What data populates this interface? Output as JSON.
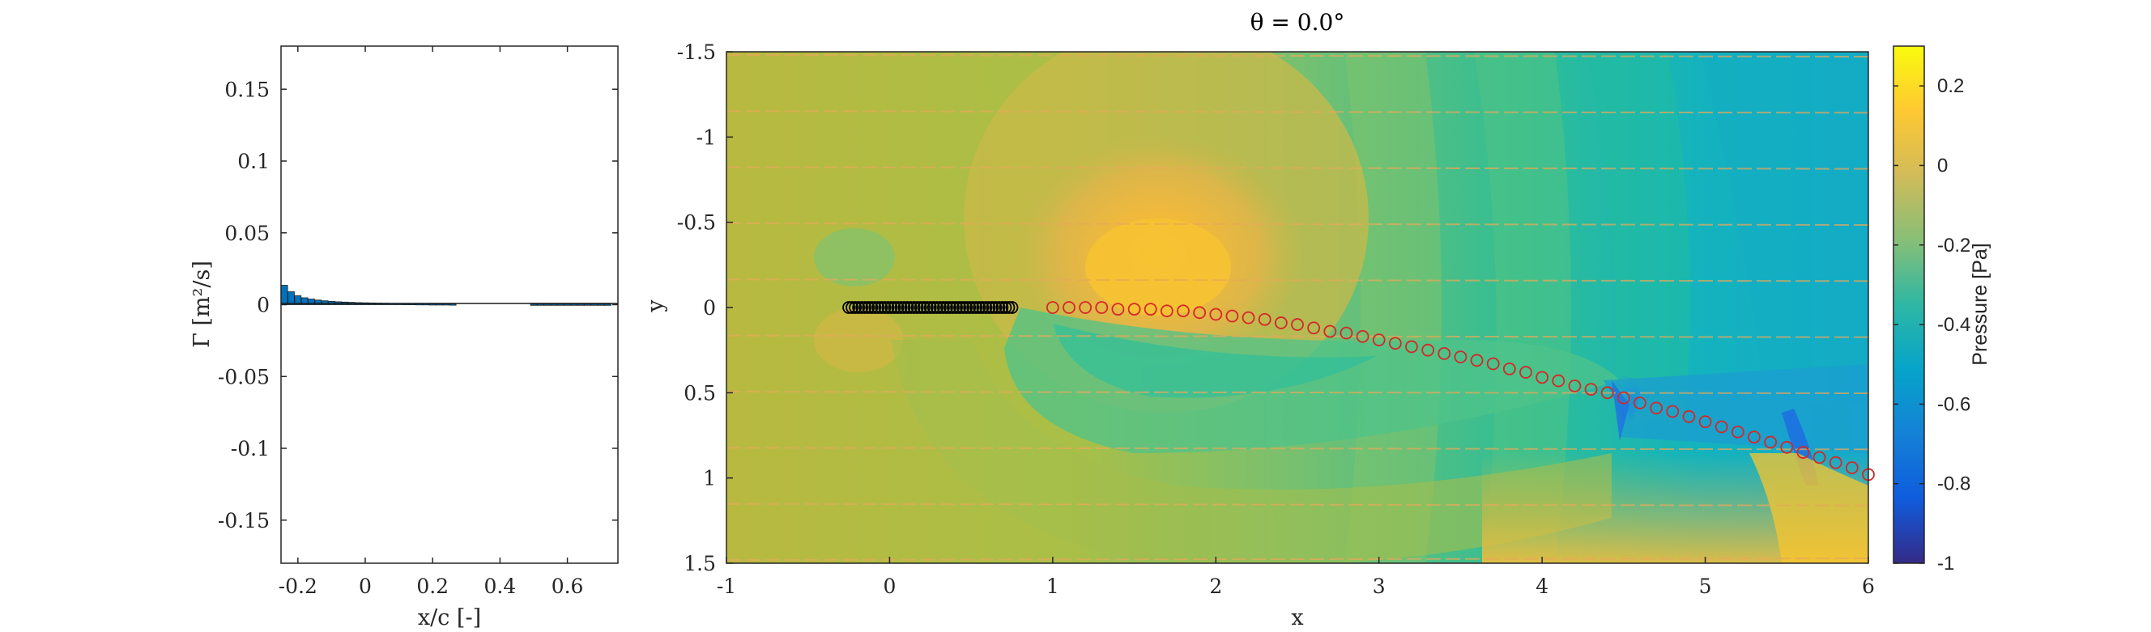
{
  "chart_data": [
    {
      "type": "bar",
      "xlabel": "x/c [-]",
      "ylabel": "Γ [m²/s]",
      "xlim": [
        -0.25,
        0.75
      ],
      "ylim": [
        -0.18,
        0.18
      ],
      "x_ticks": [
        "-0.2",
        "0",
        "0.2",
        "0.4",
        "0.6"
      ],
      "y_ticks": [
        "0.15",
        "0.1",
        "0.05",
        "0",
        "-0.05",
        "-0.1",
        "-0.15"
      ],
      "bar_color": "#0072bd",
      "x": [
        -0.24,
        -0.22,
        -0.2,
        -0.18,
        -0.16,
        -0.14,
        -0.12,
        -0.1,
        -0.08,
        -0.06,
        -0.04,
        -0.02,
        0.0,
        0.02,
        0.04,
        0.06,
        0.08,
        0.1,
        0.12,
        0.14,
        0.16,
        0.18,
        0.2,
        0.22,
        0.24,
        0.26,
        0.5,
        0.52,
        0.54,
        0.56,
        0.58,
        0.6,
        0.62,
        0.64,
        0.66,
        0.68,
        0.7,
        0.72
      ],
      "values": [
        0.0135,
        0.009,
        0.0062,
        0.0048,
        0.0039,
        0.0032,
        0.0027,
        0.0023,
        0.002,
        0.0018,
        0.0016,
        0.0014,
        0.0013,
        0.0012,
        0.0011,
        0.001,
        0.0009,
        0.0009,
        0.0008,
        0.0008,
        0.0007,
        0.0007,
        0.0006,
        0.0006,
        0.0006,
        0.0005,
        0.0004,
        0.0004,
        0.0004,
        0.0004,
        0.0004,
        0.0004,
        0.0004,
        0.0004,
        0.0004,
        0.0004,
        0.0004,
        0.0004
      ]
    },
    {
      "type": "heatmap",
      "title": "θ = 0.0°",
      "xlabel": "x",
      "ylabel": "y",
      "xlim": [
        -1,
        6
      ],
      "ylim": [
        -1.5,
        1.5
      ],
      "y_reversed": true,
      "x_ticks": [
        "-1",
        "0",
        "1",
        "2",
        "3",
        "4",
        "5",
        "6"
      ],
      "y_ticks": [
        "-1.5",
        "-1",
        "-0.5",
        "0",
        "0.5",
        "1",
        "1.5"
      ],
      "colorbar": {
        "label": "Pressure [Pa]",
        "range": [
          -1,
          0.3
        ],
        "ticks": [
          "0.2",
          "0",
          "-0.2",
          "-0.4",
          "-0.6",
          "-0.8",
          "-1"
        ],
        "colormap": "parula"
      },
      "plate_points": {
        "color": "#000000",
        "x": [
          -0.25,
          -0.23,
          -0.21,
          -0.19,
          -0.17,
          -0.15,
          -0.13,
          -0.11,
          -0.09,
          -0.07,
          -0.05,
          -0.03,
          -0.01,
          0.01,
          0.03,
          0.05,
          0.07,
          0.09,
          0.11,
          0.13,
          0.15,
          0.17,
          0.19,
          0.21,
          0.23,
          0.25,
          0.27,
          0.29,
          0.31,
          0.33,
          0.35,
          0.37,
          0.39,
          0.41,
          0.43,
          0.45,
          0.47,
          0.49,
          0.51,
          0.53,
          0.55,
          0.57,
          0.59,
          0.61,
          0.63,
          0.65,
          0.67,
          0.69,
          0.71,
          0.73,
          0.75
        ],
        "y": 0
      },
      "wake_points": {
        "color": "#d62728",
        "x": [
          1.0,
          1.1,
          1.2,
          1.3,
          1.4,
          1.5,
          1.6,
          1.7,
          1.8,
          1.9,
          2.0,
          2.1,
          2.2,
          2.3,
          2.4,
          2.5,
          2.6,
          2.7,
          2.8,
          2.9,
          3.0,
          3.1,
          3.2,
          3.3,
          3.4,
          3.5,
          3.6,
          3.7,
          3.8,
          3.9,
          4.0,
          4.1,
          4.2,
          4.3,
          4.4,
          4.5,
          4.6,
          4.7,
          4.8,
          4.9,
          5.0,
          5.1,
          5.2,
          5.3,
          5.4,
          5.5,
          5.6,
          5.7,
          5.8,
          5.9,
          6.0
        ],
        "y": [
          0.0,
          0.0,
          0.0,
          0.0,
          0.01,
          0.01,
          0.01,
          0.02,
          0.02,
          0.03,
          0.04,
          0.05,
          0.06,
          0.07,
          0.09,
          0.1,
          0.12,
          0.14,
          0.15,
          0.17,
          0.19,
          0.21,
          0.23,
          0.25,
          0.27,
          0.29,
          0.31,
          0.33,
          0.36,
          0.38,
          0.41,
          0.43,
          0.46,
          0.48,
          0.5,
          0.53,
          0.56,
          0.59,
          0.61,
          0.64,
          0.67,
          0.7,
          0.73,
          0.76,
          0.79,
          0.82,
          0.85,
          0.88,
          0.91,
          0.94,
          0.98
        ]
      }
    }
  ]
}
